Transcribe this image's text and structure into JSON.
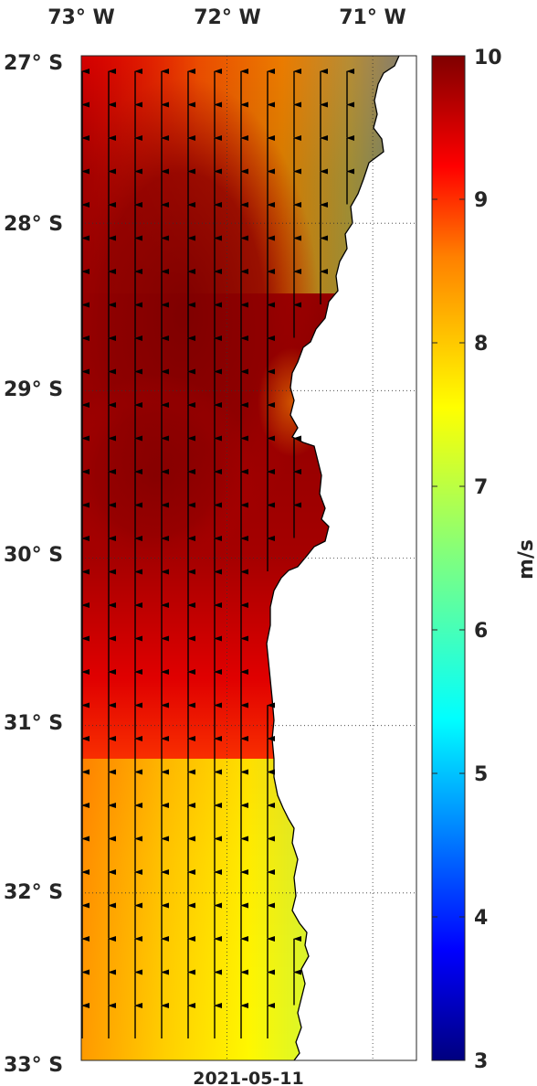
{
  "map": {
    "date": "2021-05-11",
    "lon_labels": [
      "73° W",
      "72° W",
      "71° W"
    ],
    "lat_labels": [
      "27° S",
      "28° S",
      "29° S",
      "30° S",
      "31° S",
      "32° S",
      "33° S"
    ],
    "lon_range": [
      -73.0,
      -70.7
    ],
    "lat_range": [
      -33.0,
      -27.0
    ],
    "grid": true,
    "arrow_direction": "north"
  },
  "colorbar": {
    "label": "m/s",
    "min": 3,
    "max": 10,
    "ticks": [
      "3",
      "4",
      "5",
      "6",
      "7",
      "8",
      "9",
      "10"
    ],
    "colormap": "jet"
  },
  "colors": {
    "land": "#ffffff",
    "coast": "#000000",
    "arrow": "#000000",
    "text": "#262626"
  }
}
